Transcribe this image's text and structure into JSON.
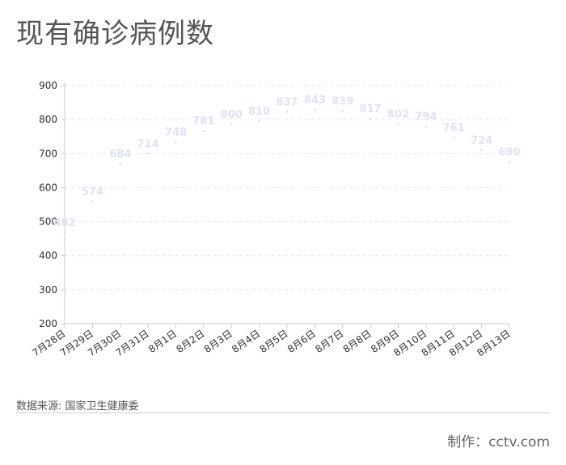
{
  "title": "现有确诊病例数",
  "source": "数据来源: 国家卫生健康委",
  "credit": "制作：cctv.com",
  "colors": {
    "label": "#dfe3f6",
    "grid": "#e6e6e6",
    "axis": "#cccccc",
    "tick_text": "#333333",
    "point": "#c9cde0"
  },
  "chart_data": {
    "type": "scatter",
    "title": "现有确诊病例数",
    "categories": [
      "7月28日",
      "7月29日",
      "7月30日",
      "7月31日",
      "8月1日",
      "8月2日",
      "8月3日",
      "8月4日",
      "8月5日",
      "8月6日",
      "8月7日",
      "8月8日",
      "8月9日",
      "8月10日",
      "8月11日",
      "8月12日",
      "8月13日"
    ],
    "values": [
      482,
      574,
      684,
      714,
      748,
      781,
      800,
      810,
      837,
      843,
      839,
      817,
      802,
      794,
      761,
      724,
      690
    ],
    "ylim": [
      200,
      900
    ],
    "yticks": [
      200,
      300,
      400,
      500,
      600,
      700,
      800,
      900
    ],
    "grid": true,
    "data_labels": true
  }
}
